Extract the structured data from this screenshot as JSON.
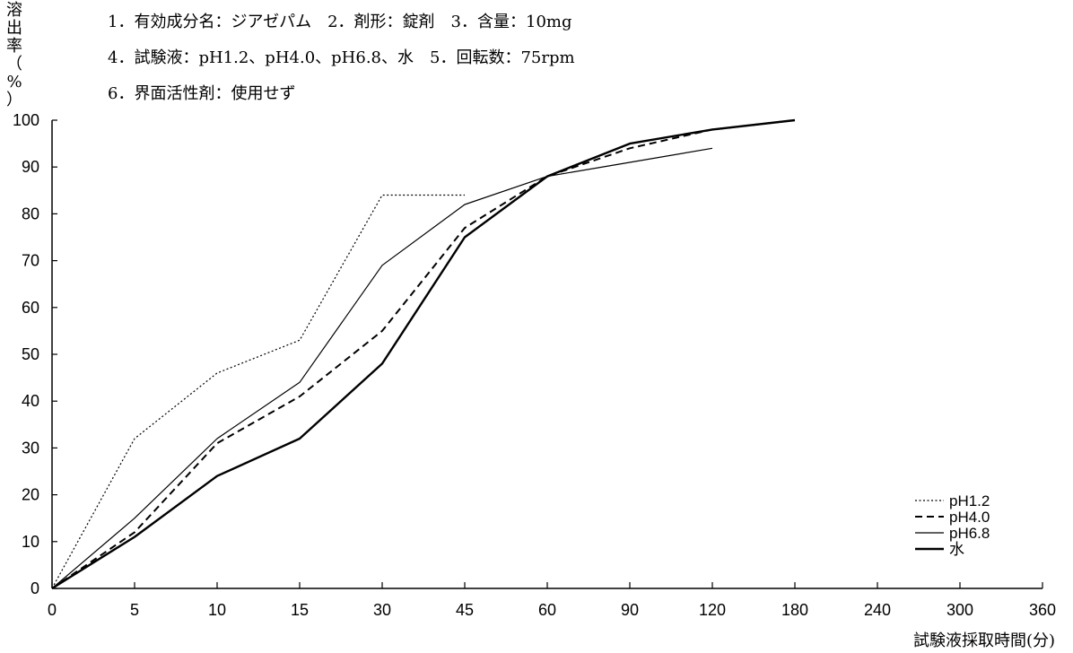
{
  "conditions": {
    "line1": "1．有効成分名：ジアゼパム　2．剤形：錠剤　3．含量：10mg",
    "line2": "4．試験液：pH1.2、pH4.0、pH6.8、水　5．回転数：75rpm",
    "line3": "6．界面活性剤：使用せず"
  },
  "chart_data": {
    "type": "line",
    "title": "",
    "xlabel": "試験液採取時間(分)",
    "ylabel": "溶出率(%)",
    "ylabel_chars": [
      "溶",
      "出",
      "率",
      "（",
      "%",
      "）"
    ],
    "x": [
      0,
      5,
      10,
      15,
      30,
      45,
      60,
      90,
      120,
      180,
      240,
      300,
      360
    ],
    "x_tick_labels": [
      "0",
      "5",
      "10",
      "15",
      "30",
      "45",
      "60",
      "90",
      "120",
      "180",
      "240",
      "300",
      "360"
    ],
    "ylim": [
      0,
      100
    ],
    "y_ticks": [
      0,
      10,
      20,
      30,
      40,
      50,
      60,
      70,
      80,
      90,
      100
    ],
    "grid": false,
    "legend_position": "bottom-right",
    "series": [
      {
        "name": "pH1.2",
        "style": "dotted",
        "x": [
          0,
          5,
          10,
          15,
          30,
          45
        ],
        "values": [
          0,
          32,
          46,
          53,
          84,
          84
        ]
      },
      {
        "name": "pH4.0",
        "style": "dashed",
        "x": [
          0,
          5,
          10,
          15,
          30,
          45,
          60,
          90,
          120,
          180
        ],
        "values": [
          0,
          12,
          31,
          41,
          55,
          77,
          88,
          94,
          98,
          100
        ]
      },
      {
        "name": "pH6.8",
        "style": "thin",
        "x": [
          0,
          5,
          10,
          15,
          30,
          45,
          60,
          90,
          120
        ],
        "values": [
          0,
          15,
          32,
          44,
          69,
          82,
          88,
          91,
          94
        ]
      },
      {
        "name": "水",
        "style": "thick",
        "x": [
          0,
          5,
          10,
          15,
          30,
          45,
          60,
          90,
          120,
          180
        ],
        "values": [
          0,
          11,
          24,
          32,
          48,
          75,
          88,
          95,
          98,
          100
        ]
      }
    ]
  }
}
